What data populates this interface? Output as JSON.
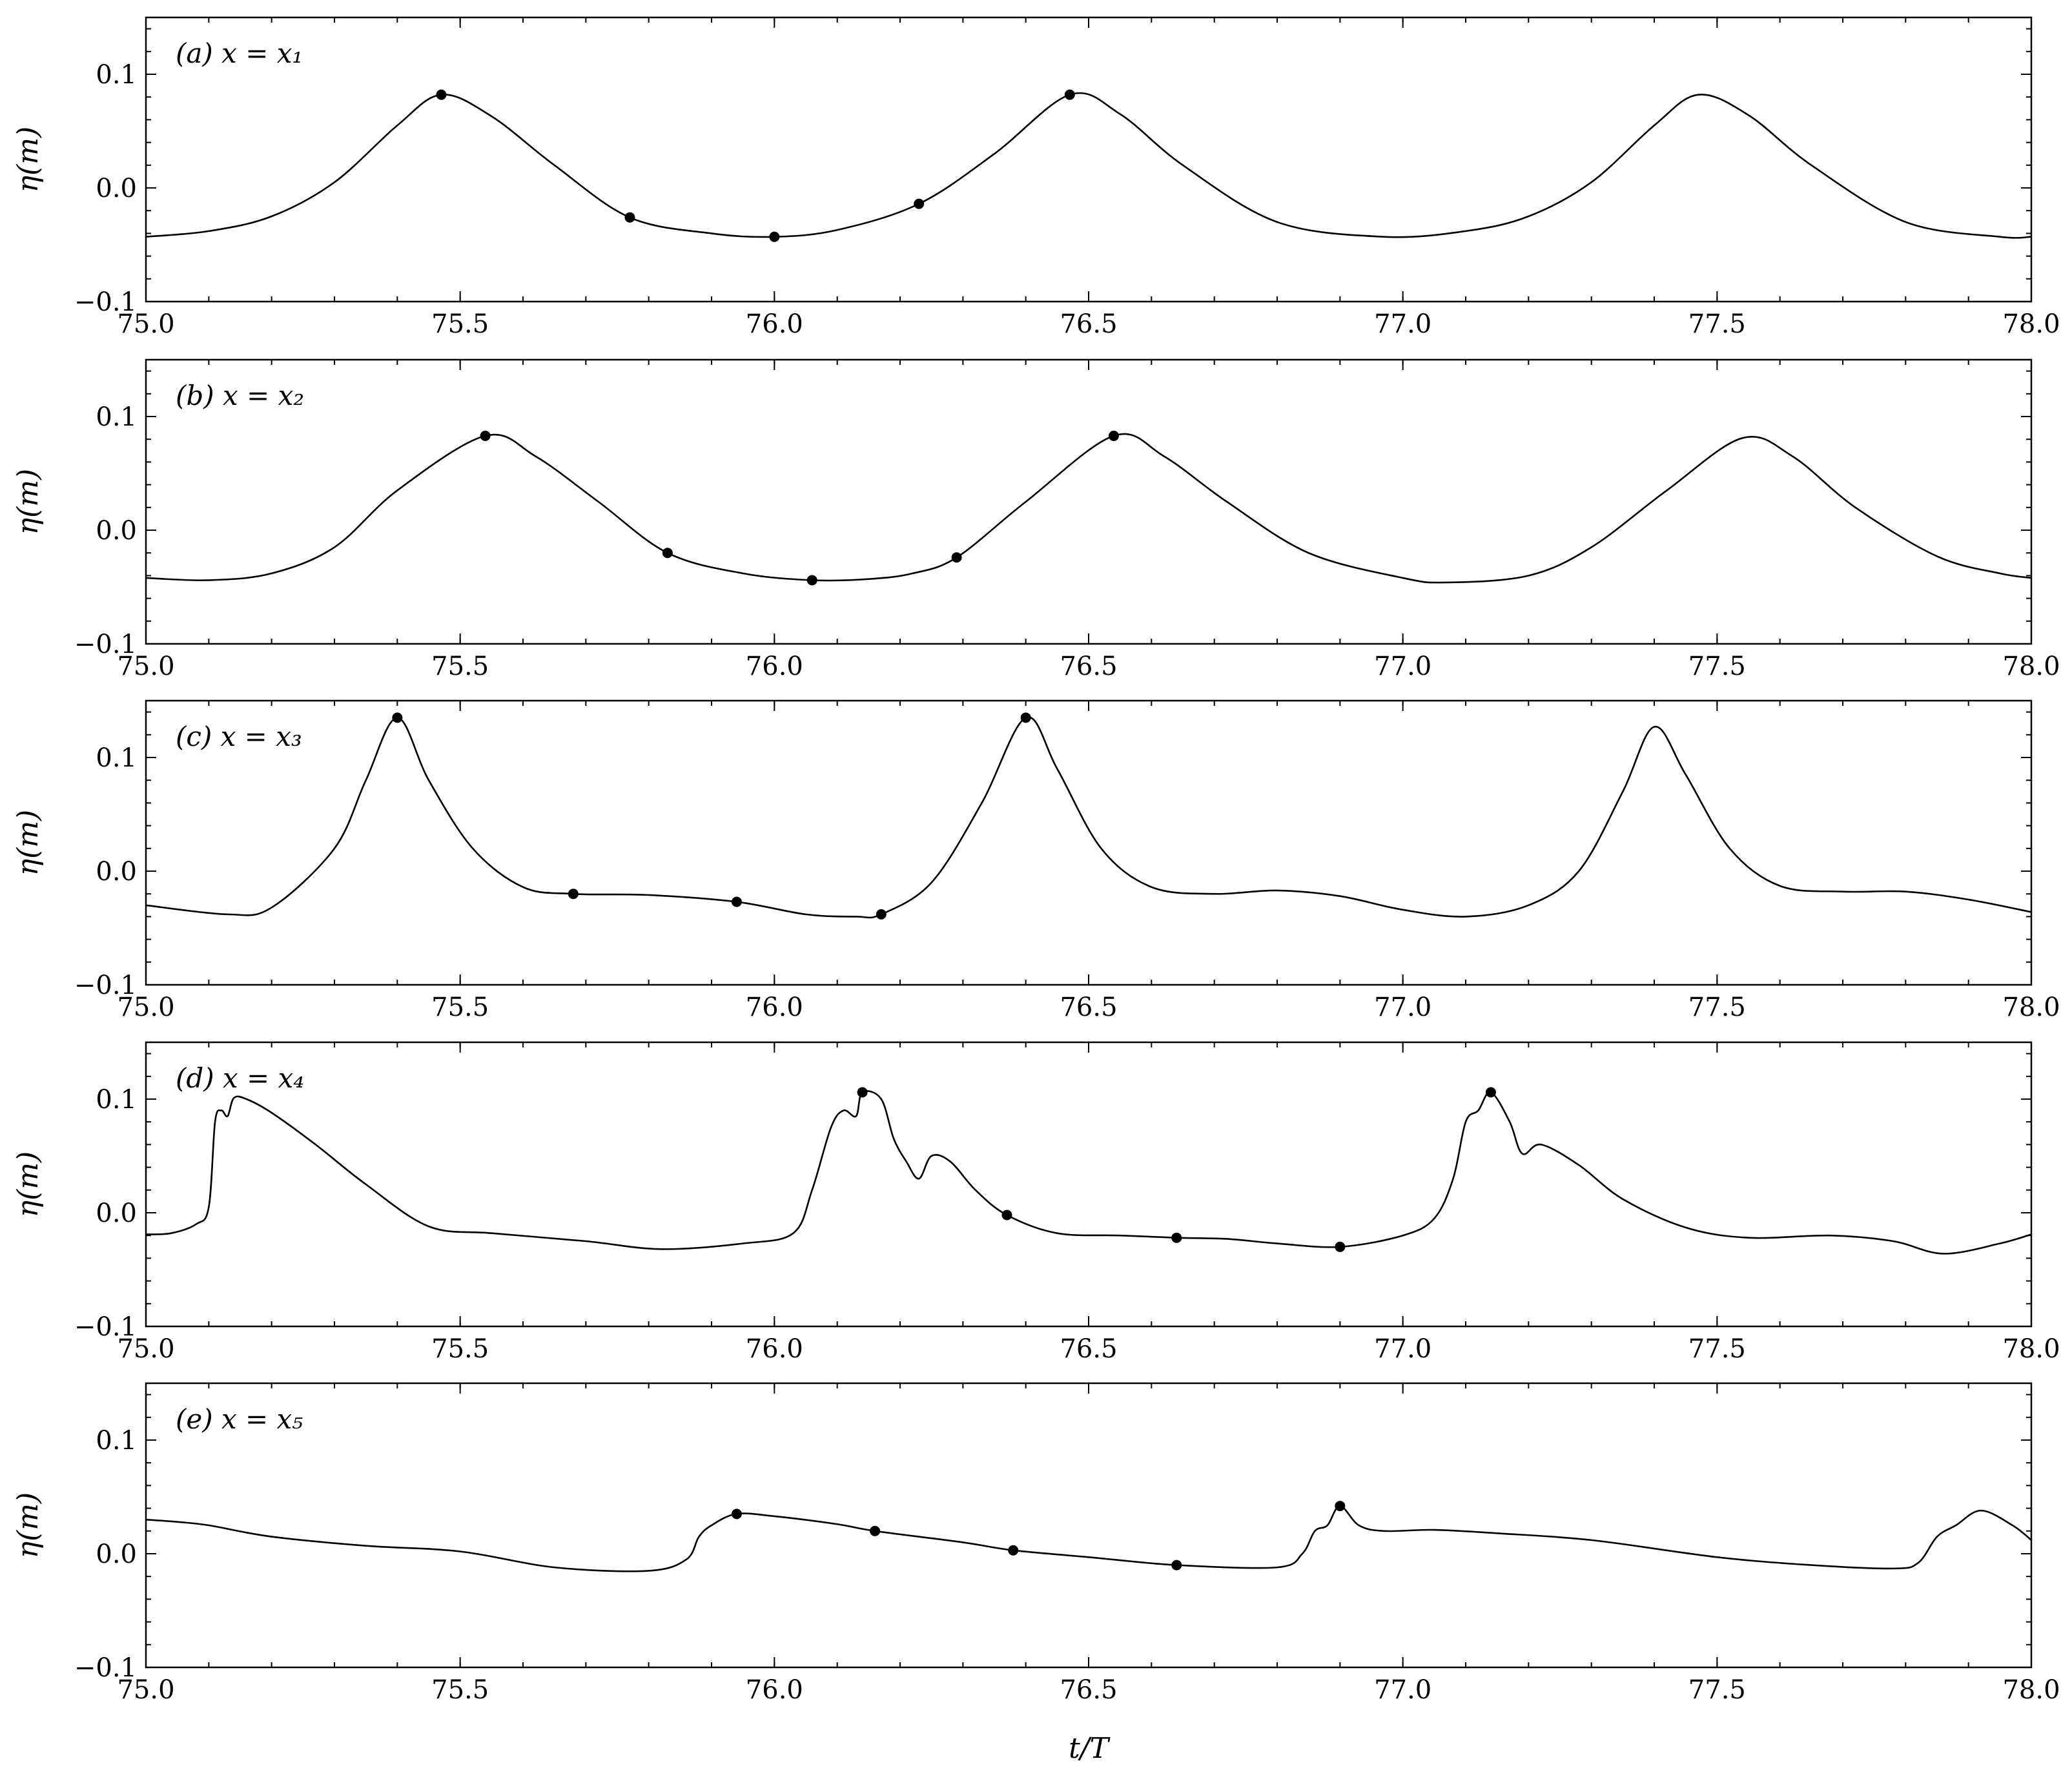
{
  "figure": {
    "xlabel": "t/T"
  },
  "chart_data": [
    {
      "type": "line",
      "panel_label": "(a) x = x₁",
      "ylabel": "η(m)",
      "xlim": [
        75.0,
        78.0
      ],
      "ylim": [
        -0.1,
        0.15
      ],
      "x_ticks": [
        "75.0",
        "75.5",
        "76.0",
        "76.5",
        "77.0",
        "77.5",
        "78.0"
      ],
      "y_ticks": [
        "−0.1",
        "0.0",
        "0.1"
      ],
      "x_tick_values": [
        75.0,
        75.5,
        76.0,
        76.5,
        77.0,
        77.5,
        78.0
      ],
      "y_tick_values": [
        -0.1,
        0.0,
        0.1
      ],
      "series": [
        {
          "x": [
            75.0,
            75.1,
            75.2,
            75.3,
            75.4,
            75.47,
            75.55,
            75.65,
            75.77,
            75.9,
            76.0,
            76.1,
            76.23,
            76.35,
            76.47,
            76.55,
            76.65,
            76.8,
            76.97,
            77.1,
            77.2,
            77.3,
            77.4,
            77.47,
            77.55,
            77.65,
            77.8,
            77.95,
            78.0
          ],
          "y": [
            -0.043,
            -0.038,
            -0.025,
            0.005,
            0.055,
            0.082,
            0.063,
            0.02,
            -0.026,
            -0.04,
            -0.043,
            -0.037,
            -0.014,
            0.03,
            0.082,
            0.065,
            0.02,
            -0.03,
            -0.043,
            -0.038,
            -0.025,
            0.005,
            0.055,
            0.082,
            0.064,
            0.02,
            -0.03,
            -0.043,
            -0.043
          ]
        }
      ],
      "markers": {
        "x": [
          75.47,
          75.77,
          76.0,
          76.23,
          76.47
        ],
        "y": [
          0.082,
          -0.026,
          -0.043,
          -0.014,
          0.082
        ]
      }
    },
    {
      "type": "line",
      "panel_label": "(b) x = x₂",
      "ylabel": "η(m)",
      "xlim": [
        75.0,
        78.0
      ],
      "ylim": [
        -0.1,
        0.15
      ],
      "x_ticks": [
        "75.0",
        "75.5",
        "76.0",
        "76.5",
        "77.0",
        "77.5",
        "78.0"
      ],
      "y_ticks": [
        "−0.1",
        "0.0",
        "0.1"
      ],
      "x_tick_values": [
        75.0,
        75.5,
        76.0,
        76.5,
        77.0,
        77.5,
        78.0
      ],
      "y_tick_values": [
        -0.1,
        0.0,
        0.1
      ],
      "series": [
        {
          "x": [
            75.0,
            75.1,
            75.2,
            75.3,
            75.4,
            75.54,
            75.62,
            75.72,
            75.83,
            75.95,
            76.06,
            76.15,
            76.22,
            76.29,
            76.4,
            76.54,
            76.62,
            76.72,
            76.85,
            77.0,
            77.07,
            77.2,
            77.3,
            77.42,
            77.54,
            77.62,
            77.72,
            77.85,
            77.95,
            78.0
          ],
          "y": [
            -0.042,
            -0.044,
            -0.038,
            -0.015,
            0.035,
            0.083,
            0.065,
            0.025,
            -0.02,
            -0.038,
            -0.044,
            -0.043,
            -0.038,
            -0.024,
            0.025,
            0.083,
            0.065,
            0.025,
            -0.02,
            -0.042,
            -0.046,
            -0.04,
            -0.015,
            0.035,
            0.081,
            0.065,
            0.02,
            -0.023,
            -0.038,
            -0.042
          ]
        }
      ],
      "markers": {
        "x": [
          75.54,
          75.83,
          76.06,
          76.29,
          76.54
        ],
        "y": [
          0.083,
          -0.02,
          -0.044,
          -0.024,
          0.083
        ]
      }
    },
    {
      "type": "line",
      "panel_label": "(c) x = x₃",
      "ylabel": "η(m)",
      "xlim": [
        75.0,
        78.0
      ],
      "ylim": [
        -0.1,
        0.15
      ],
      "x_ticks": [
        "75.0",
        "75.5",
        "76.0",
        "76.5",
        "77.0",
        "77.5",
        "78.0"
      ],
      "y_ticks": [
        "−0.1",
        "0.0",
        "0.1"
      ],
      "x_tick_values": [
        75.0,
        75.5,
        76.0,
        76.5,
        77.0,
        77.5,
        78.0
      ],
      "y_tick_values": [
        -0.1,
        0.0,
        0.1
      ],
      "series": [
        {
          "x": [
            75.0,
            75.13,
            75.2,
            75.3,
            75.35,
            75.4,
            75.45,
            75.52,
            75.6,
            75.68,
            75.8,
            75.94,
            76.05,
            76.13,
            76.17,
            76.25,
            76.33,
            76.4,
            76.45,
            76.52,
            76.6,
            76.7,
            76.8,
            76.9,
            77.0,
            77.1,
            77.2,
            77.28,
            77.35,
            77.4,
            77.45,
            77.52,
            77.6,
            77.7,
            77.8,
            77.9,
            78.0
          ],
          "y": [
            -0.03,
            -0.038,
            -0.032,
            0.02,
            0.08,
            0.135,
            0.08,
            0.02,
            -0.014,
            -0.02,
            -0.021,
            -0.027,
            -0.038,
            -0.04,
            -0.038,
            -0.01,
            0.06,
            0.135,
            0.09,
            0.02,
            -0.014,
            -0.02,
            -0.017,
            -0.022,
            -0.034,
            -0.04,
            -0.03,
            0.0,
            0.07,
            0.127,
            0.085,
            0.02,
            -0.013,
            -0.018,
            -0.018,
            -0.025,
            -0.036
          ]
        }
      ],
      "markers": {
        "x": [
          75.4,
          75.68,
          75.94,
          76.17,
          76.4
        ],
        "y": [
          0.135,
          -0.02,
          -0.027,
          -0.038,
          0.135
        ]
      }
    },
    {
      "type": "line",
      "panel_label": "(d) x = x₄",
      "ylabel": "η(m)",
      "xlim": [
        75.0,
        78.0
      ],
      "ylim": [
        -0.1,
        0.15
      ],
      "x_ticks": [
        "75.0",
        "75.5",
        "76.0",
        "76.5",
        "77.0",
        "77.5",
        "78.0"
      ],
      "y_ticks": [
        "−0.1",
        "0.0",
        "0.1"
      ],
      "x_tick_values": [
        75.0,
        75.5,
        76.0,
        76.5,
        77.0,
        77.5,
        78.0
      ],
      "y_tick_values": [
        -0.1,
        0.0,
        0.1
      ],
      "series": [
        {
          "x": [
            75.0,
            75.04,
            75.08,
            75.1,
            75.11,
            75.12,
            75.13,
            75.14,
            75.16,
            75.2,
            75.27,
            75.35,
            75.45,
            75.55,
            75.7,
            75.82,
            75.95,
            76.03,
            76.06,
            76.09,
            76.11,
            76.13,
            76.14,
            76.17,
            76.19,
            76.21,
            76.23,
            76.25,
            76.28,
            76.32,
            76.37,
            76.45,
            76.55,
            76.64,
            76.72,
            76.8,
            76.9,
            77.0,
            77.05,
            77.08,
            77.1,
            77.12,
            77.14,
            77.17,
            77.19,
            77.22,
            77.28,
            77.35,
            77.45,
            77.55,
            77.68,
            77.78,
            77.86,
            77.95,
            78.0
          ],
          "y": [
            -0.019,
            -0.018,
            -0.01,
            0.005,
            0.08,
            0.09,
            0.085,
            0.101,
            0.1,
            0.088,
            0.06,
            0.025,
            -0.012,
            -0.018,
            -0.025,
            -0.032,
            -0.027,
            -0.018,
            0.02,
            0.075,
            0.09,
            0.085,
            0.106,
            0.1,
            0.065,
            0.045,
            0.03,
            0.05,
            0.045,
            0.02,
            -0.002,
            -0.018,
            -0.02,
            -0.022,
            -0.023,
            -0.027,
            -0.03,
            -0.02,
            -0.005,
            0.03,
            0.08,
            0.09,
            0.106,
            0.08,
            0.052,
            0.06,
            0.042,
            0.012,
            -0.013,
            -0.022,
            -0.02,
            -0.025,
            -0.036,
            -0.027,
            -0.019
          ]
        }
      ],
      "markers": {
        "x": [
          76.14,
          76.37,
          76.64,
          76.9,
          77.14
        ],
        "y": [
          0.106,
          -0.002,
          -0.022,
          -0.03,
          0.106
        ]
      }
    },
    {
      "type": "line",
      "panel_label": "(e) x = x₅",
      "ylabel": "η(m)",
      "xlim": [
        75.0,
        78.0
      ],
      "ylim": [
        -0.1,
        0.15
      ],
      "x_ticks": [
        "75.0",
        "75.5",
        "76.0",
        "76.5",
        "77.0",
        "77.5",
        "78.0"
      ],
      "y_ticks": [
        "−0.1",
        "0.0",
        "0.1"
      ],
      "x_tick_values": [
        75.0,
        75.5,
        76.0,
        76.5,
        77.0,
        77.5,
        78.0
      ],
      "y_tick_values": [
        -0.1,
        0.0,
        0.1
      ],
      "series": [
        {
          "x": [
            75.0,
            75.05,
            75.1,
            75.2,
            75.35,
            75.5,
            75.65,
            75.8,
            75.86,
            75.88,
            75.9,
            75.94,
            76.0,
            76.1,
            76.16,
            76.3,
            76.38,
            76.5,
            76.64,
            76.8,
            76.84,
            76.86,
            76.88,
            76.9,
            76.93,
            76.97,
            77.05,
            77.15,
            77.3,
            77.5,
            77.65,
            77.78,
            77.82,
            77.85,
            77.88,
            77.92,
            77.97,
            78.0
          ],
          "y": [
            0.03,
            0.028,
            0.025,
            0.015,
            0.007,
            0.002,
            -0.012,
            -0.015,
            -0.005,
            0.015,
            0.025,
            0.035,
            0.033,
            0.026,
            0.02,
            0.01,
            0.003,
            -0.003,
            -0.01,
            -0.012,
            0.0,
            0.02,
            0.025,
            0.042,
            0.025,
            0.02,
            0.021,
            0.018,
            0.012,
            -0.003,
            -0.01,
            -0.013,
            -0.008,
            0.015,
            0.025,
            0.038,
            0.025,
            0.012
          ]
        }
      ],
      "markers": {
        "x": [
          75.94,
          76.16,
          76.38,
          76.64,
          76.9
        ],
        "y": [
          0.035,
          0.02,
          0.003,
          -0.01,
          0.042
        ]
      }
    }
  ]
}
